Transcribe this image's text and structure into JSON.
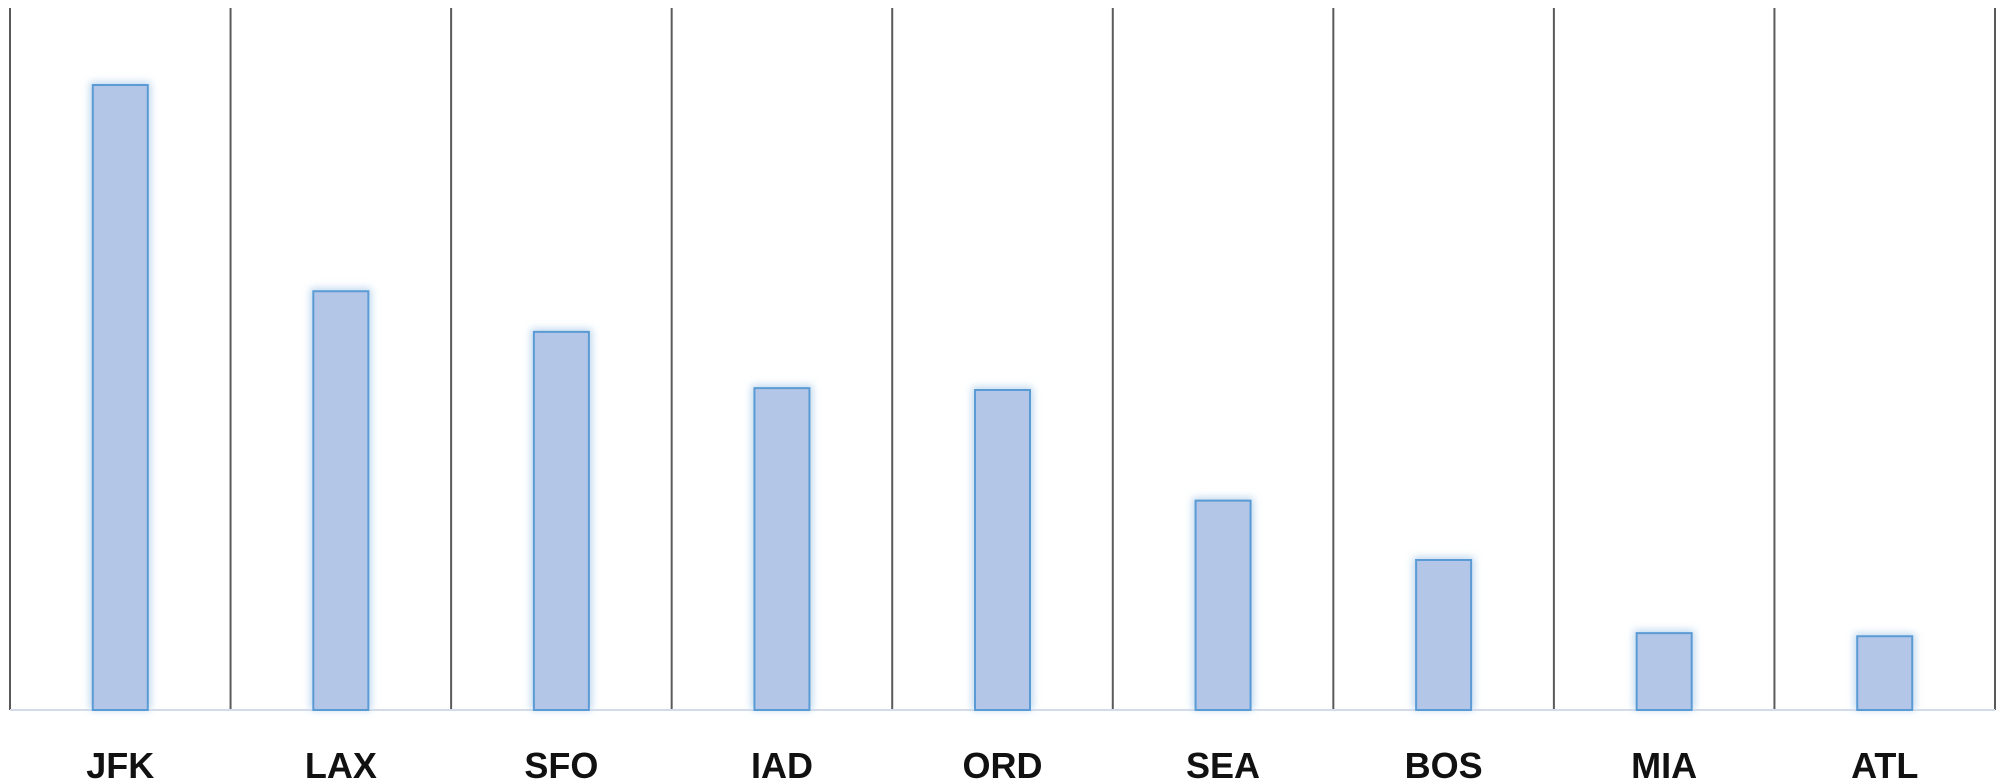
{
  "chart_data": {
    "type": "bar",
    "title": "",
    "xlabel": "",
    "ylabel": "",
    "categories": [
      "JFK",
      "LAX",
      "SFO",
      "IAD",
      "ORD",
      "SEA",
      "BOS",
      "MIA",
      "ATL"
    ],
    "values": [
      100,
      67,
      60.5,
      51.5,
      51.2,
      33.5,
      24,
      12.3,
      11.8
    ],
    "ylim": [
      0,
      100
    ],
    "grid": false,
    "legend": "none",
    "colors": {
      "bar_fill": "#b4c6e7",
      "bar_stroke": "#5b9bd5",
      "bar_glow": "#bdd7ee",
      "divider": "#5a5a5a",
      "baseline": "#d4dbe8",
      "label": "#111111"
    }
  }
}
